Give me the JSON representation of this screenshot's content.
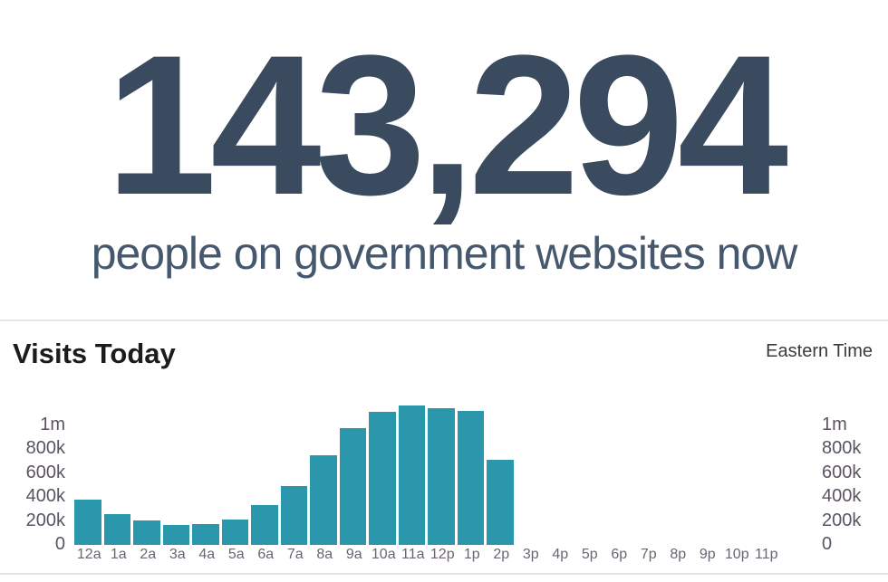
{
  "hero": {
    "count": "143,294",
    "subtitle": "people on government websites now"
  },
  "chart": {
    "title": "Visits Today",
    "timezone": "Eastern Time"
  },
  "chart_data": {
    "type": "bar",
    "title": "Visits Today",
    "annotation": "Eastern Time",
    "categories": [
      "12a",
      "1a",
      "2a",
      "3a",
      "4a",
      "5a",
      "6a",
      "7a",
      "8a",
      "9a",
      "10a",
      "11a",
      "12p",
      "1p",
      "2p",
      "3p",
      "4p",
      "5p",
      "6p",
      "7p",
      "8p",
      "9p",
      "10p",
      "11p"
    ],
    "values": [
      380000,
      258000,
      205000,
      167000,
      174000,
      212000,
      333000,
      492000,
      750000,
      977000,
      1110000,
      1167000,
      1144000,
      1121000,
      712000,
      0,
      0,
      0,
      0,
      0,
      0,
      0,
      0,
      0
    ],
    "xlabel": "",
    "ylabel": "",
    "y_ticks": [
      "0",
      "200k",
      "400k",
      "600k",
      "800k",
      "1m"
    ],
    "y_tick_values": [
      0,
      200000,
      400000,
      600000,
      800000,
      1000000
    ],
    "ylim": [
      0,
      1212000
    ],
    "axis_labels_sides": "both",
    "grid": false,
    "legend": "none",
    "bar_color": "#2b97ad"
  }
}
